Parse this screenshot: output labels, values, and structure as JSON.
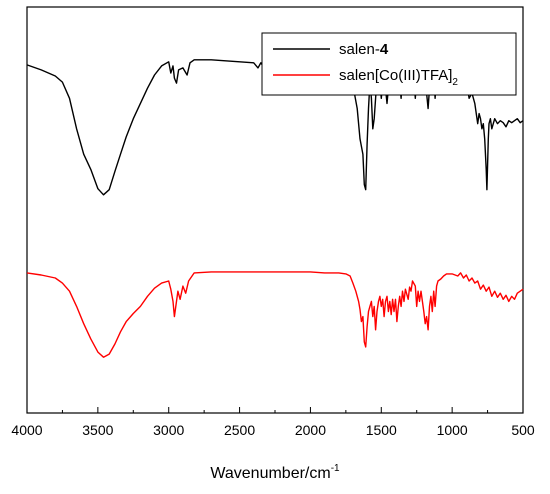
{
  "chart_data": {
    "type": "line",
    "title": "",
    "xlabel": "Wavenumber/cm",
    "xlabel_superscript": "-1",
    "ylabel": "",
    "xlim": [
      4000,
      500
    ],
    "ylim": [
      0,
      4
    ],
    "x_reversed": true,
    "x_ticks": [
      4000,
      3500,
      3000,
      2500,
      2000,
      1500,
      1000,
      500
    ],
    "y_ticks_shown": false,
    "grid": false,
    "legend_position": "top-right",
    "series": [
      {
        "name_text": "salen-",
        "name_bold": "4",
        "color": "#000000",
        "points": [
          [
            4000,
            3.43
          ],
          [
            3900,
            3.38
          ],
          [
            3800,
            3.32
          ],
          [
            3750,
            3.26
          ],
          [
            3700,
            3.1
          ],
          [
            3650,
            2.8
          ],
          [
            3600,
            2.55
          ],
          [
            3550,
            2.4
          ],
          [
            3500,
            2.21
          ],
          [
            3460,
            2.15
          ],
          [
            3420,
            2.2
          ],
          [
            3380,
            2.38
          ],
          [
            3340,
            2.55
          ],
          [
            3300,
            2.72
          ],
          [
            3250,
            2.9
          ],
          [
            3200,
            3.05
          ],
          [
            3150,
            3.2
          ],
          [
            3100,
            3.33
          ],
          [
            3050,
            3.42
          ],
          [
            3000,
            3.46
          ],
          [
            2985,
            3.35
          ],
          [
            2970,
            3.42
          ],
          [
            2960,
            3.3
          ],
          [
            2945,
            3.25
          ],
          [
            2930,
            3.38
          ],
          [
            2900,
            3.4
          ],
          [
            2870,
            3.33
          ],
          [
            2850,
            3.45
          ],
          [
            2820,
            3.48
          ],
          [
            2700,
            3.48
          ],
          [
            2600,
            3.47
          ],
          [
            2500,
            3.46
          ],
          [
            2400,
            3.45
          ],
          [
            2370,
            3.4
          ],
          [
            2350,
            3.45
          ],
          [
            2330,
            3.41
          ],
          [
            2300,
            3.46
          ],
          [
            2200,
            3.47
          ],
          [
            2100,
            3.46
          ],
          [
            2050,
            3.45
          ],
          [
            2000,
            3.46
          ],
          [
            1900,
            3.48
          ],
          [
            1800,
            3.48
          ],
          [
            1750,
            3.47
          ],
          [
            1730,
            3.42
          ],
          [
            1710,
            3.3
          ],
          [
            1690,
            3.15
          ],
          [
            1670,
            3.0
          ],
          [
            1650,
            2.7
          ],
          [
            1630,
            2.55
          ],
          [
            1620,
            2.25
          ],
          [
            1610,
            2.2
          ],
          [
            1600,
            2.65
          ],
          [
            1590,
            3.0
          ],
          [
            1580,
            3.25
          ],
          [
            1570,
            3.1
          ],
          [
            1560,
            2.8
          ],
          [
            1550,
            2.9
          ],
          [
            1540,
            3.1
          ],
          [
            1530,
            3.3
          ],
          [
            1510,
            3.25
          ],
          [
            1500,
            3.1
          ],
          [
            1490,
            3.25
          ],
          [
            1480,
            3.35
          ],
          [
            1470,
            3.2
          ],
          [
            1460,
            3.05
          ],
          [
            1450,
            3.2
          ],
          [
            1440,
            3.33
          ],
          [
            1430,
            3.15
          ],
          [
            1420,
            3.3
          ],
          [
            1400,
            3.2
          ],
          [
            1390,
            3.35
          ],
          [
            1380,
            3.4
          ],
          [
            1370,
            3.25
          ],
          [
            1360,
            3.1
          ],
          [
            1350,
            3.3
          ],
          [
            1340,
            3.15
          ],
          [
            1330,
            3.35
          ],
          [
            1310,
            3.4
          ],
          [
            1300,
            3.22
          ],
          [
            1290,
            3.35
          ],
          [
            1280,
            3.42
          ],
          [
            1270,
            3.3
          ],
          [
            1260,
            3.1
          ],
          [
            1250,
            3.3
          ],
          [
            1240,
            3.38
          ],
          [
            1230,
            3.25
          ],
          [
            1220,
            3.37
          ],
          [
            1200,
            3.25
          ],
          [
            1190,
            3.35
          ],
          [
            1180,
            3.15
          ],
          [
            1170,
            3.0
          ],
          [
            1160,
            3.2
          ],
          [
            1150,
            3.36
          ],
          [
            1140,
            3.25
          ],
          [
            1130,
            3.35
          ],
          [
            1120,
            3.1
          ],
          [
            1110,
            3.3
          ],
          [
            1100,
            3.36
          ],
          [
            1080,
            3.32
          ],
          [
            1060,
            3.36
          ],
          [
            1040,
            3.3
          ],
          [
            1020,
            3.35
          ],
          [
            1000,
            3.33
          ],
          [
            980,
            3.35
          ],
          [
            960,
            3.3
          ],
          [
            940,
            3.33
          ],
          [
            920,
            3.25
          ],
          [
            900,
            3.28
          ],
          [
            880,
            3.1
          ],
          [
            860,
            3.15
          ],
          [
            840,
            3.05
          ],
          [
            820,
            2.85
          ],
          [
            810,
            2.95
          ],
          [
            800,
            2.9
          ],
          [
            790,
            2.8
          ],
          [
            780,
            2.85
          ],
          [
            770,
            2.7
          ],
          [
            760,
            2.4
          ],
          [
            755,
            2.2
          ],
          [
            750,
            2.45
          ],
          [
            745,
            2.7
          ],
          [
            740,
            2.85
          ],
          [
            730,
            2.9
          ],
          [
            720,
            2.8
          ],
          [
            700,
            2.9
          ],
          [
            680,
            2.85
          ],
          [
            660,
            2.88
          ],
          [
            640,
            2.86
          ],
          [
            620,
            2.82
          ],
          [
            600,
            2.88
          ],
          [
            580,
            2.86
          ],
          [
            560,
            2.88
          ],
          [
            540,
            2.9
          ],
          [
            520,
            2.86
          ],
          [
            500,
            2.88
          ]
        ]
      },
      {
        "name_text": "salen[Co(III)TFA]",
        "name_subscript": "2",
        "color": "#ff0000",
        "points": [
          [
            4000,
            1.38
          ],
          [
            3900,
            1.36
          ],
          [
            3800,
            1.33
          ],
          [
            3750,
            1.28
          ],
          [
            3700,
            1.2
          ],
          [
            3650,
            1.05
          ],
          [
            3600,
            0.88
          ],
          [
            3550,
            0.73
          ],
          [
            3500,
            0.6
          ],
          [
            3460,
            0.55
          ],
          [
            3420,
            0.58
          ],
          [
            3380,
            0.68
          ],
          [
            3340,
            0.8
          ],
          [
            3300,
            0.9
          ],
          [
            3250,
            0.98
          ],
          [
            3200,
            1.05
          ],
          [
            3150,
            1.15
          ],
          [
            3100,
            1.23
          ],
          [
            3050,
            1.28
          ],
          [
            3000,
            1.3
          ],
          [
            2985,
            1.22
          ],
          [
            2970,
            1.1
          ],
          [
            2960,
            0.95
          ],
          [
            2950,
            1.05
          ],
          [
            2935,
            1.2
          ],
          [
            2920,
            1.12
          ],
          [
            2900,
            1.25
          ],
          [
            2880,
            1.18
          ],
          [
            2860,
            1.3
          ],
          [
            2820,
            1.38
          ],
          [
            2700,
            1.39
          ],
          [
            2600,
            1.39
          ],
          [
            2500,
            1.39
          ],
          [
            2400,
            1.39
          ],
          [
            2300,
            1.39
          ],
          [
            2200,
            1.39
          ],
          [
            2100,
            1.39
          ],
          [
            2000,
            1.39
          ],
          [
            1900,
            1.38
          ],
          [
            1800,
            1.38
          ],
          [
            1750,
            1.37
          ],
          [
            1720,
            1.35
          ],
          [
            1700,
            1.28
          ],
          [
            1680,
            1.2
          ],
          [
            1660,
            1.1
          ],
          [
            1650,
            1.02
          ],
          [
            1640,
            0.9
          ],
          [
            1630,
            0.95
          ],
          [
            1620,
            0.7
          ],
          [
            1610,
            0.65
          ],
          [
            1600,
            0.85
          ],
          [
            1590,
            1.0
          ],
          [
            1580,
            1.05
          ],
          [
            1570,
            1.1
          ],
          [
            1560,
            0.95
          ],
          [
            1550,
            1.05
          ],
          [
            1540,
            0.82
          ],
          [
            1530,
            1.0
          ],
          [
            1520,
            1.1
          ],
          [
            1510,
            1.15
          ],
          [
            1500,
            1.05
          ],
          [
            1490,
            1.12
          ],
          [
            1480,
            0.95
          ],
          [
            1470,
            1.1
          ],
          [
            1460,
            1.15
          ],
          [
            1450,
            1.0
          ],
          [
            1440,
            1.1
          ],
          [
            1430,
            0.97
          ],
          [
            1420,
            1.12
          ],
          [
            1410,
            1.0
          ],
          [
            1400,
            1.12
          ],
          [
            1390,
            0.9
          ],
          [
            1380,
            1.05
          ],
          [
            1370,
            1.15
          ],
          [
            1360,
            1.05
          ],
          [
            1350,
            1.2
          ],
          [
            1340,
            1.1
          ],
          [
            1330,
            1.22
          ],
          [
            1310,
            1.12
          ],
          [
            1300,
            1.24
          ],
          [
            1290,
            1.2
          ],
          [
            1280,
            1.3
          ],
          [
            1260,
            1.25
          ],
          [
            1250,
            1.05
          ],
          [
            1240,
            1.2
          ],
          [
            1230,
            1.1
          ],
          [
            1220,
            1.2
          ],
          [
            1200,
            1.0
          ],
          [
            1190,
            0.88
          ],
          [
            1180,
            0.95
          ],
          [
            1170,
            0.82
          ],
          [
            1160,
            1.05
          ],
          [
            1150,
            1.15
          ],
          [
            1140,
            1.0
          ],
          [
            1130,
            1.2
          ],
          [
            1120,
            1.05
          ],
          [
            1110,
            1.25
          ],
          [
            1100,
            1.3
          ],
          [
            1080,
            1.32
          ],
          [
            1060,
            1.35
          ],
          [
            1040,
            1.37
          ],
          [
            1000,
            1.37
          ],
          [
            960,
            1.35
          ],
          [
            940,
            1.38
          ],
          [
            920,
            1.33
          ],
          [
            900,
            1.36
          ],
          [
            880,
            1.3
          ],
          [
            860,
            1.33
          ],
          [
            840,
            1.28
          ],
          [
            820,
            1.3
          ],
          [
            800,
            1.22
          ],
          [
            780,
            1.26
          ],
          [
            760,
            1.2
          ],
          [
            740,
            1.24
          ],
          [
            720,
            1.15
          ],
          [
            700,
            1.2
          ],
          [
            680,
            1.14
          ],
          [
            660,
            1.18
          ],
          [
            640,
            1.12
          ],
          [
            620,
            1.16
          ],
          [
            600,
            1.1
          ],
          [
            580,
            1.15
          ],
          [
            560,
            1.12
          ],
          [
            540,
            1.18
          ],
          [
            520,
            1.2
          ],
          [
            500,
            1.22
          ]
        ]
      }
    ]
  }
}
